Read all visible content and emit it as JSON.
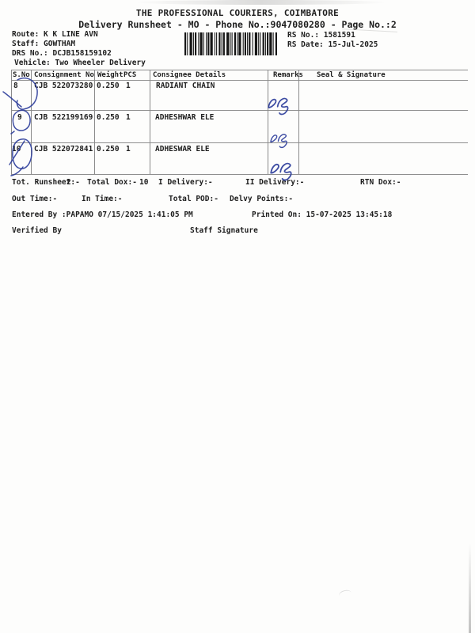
{
  "document": {
    "title": "THE PROFESSIONAL COURIERS, COIMBATORE",
    "subtitle": "Delivery Runsheet - MO - Phone No.:9047080280 - Page No.:2"
  },
  "info": {
    "route": "Route: K K LINE AVN",
    "staff": "Staff: GOWTHAM",
    "drs_no": "DRS No.: DCJB158159102",
    "vehicle": "Vehicle: Two Wheeler Delivery",
    "rs_no": "RS No.: 1581591",
    "rs_date": "RS Date: 15-Jul-2025"
  },
  "icons": {
    "barcode": "barcode"
  },
  "table": {
    "headers": {
      "sno": "S.No",
      "consignment": "Consignment No",
      "weight": "Weight",
      "pcs": "PCS",
      "consignee": "Consignee Details",
      "remarks": "Remarks",
      "seal": "Seal & Signature"
    },
    "rows": [
      {
        "sno": "8",
        "consignment": "CJB 522073280",
        "weight": "0.250",
        "pcs": "1",
        "consignee": "RADIANT CHAIN",
        "remarks": "",
        "seal": ""
      },
      {
        "sno": "9",
        "consignment": "CJB 522199169",
        "weight": "0.250",
        "pcs": "1",
        "consignee": "ADHESHWAR ELE",
        "remarks": "",
        "seal": ""
      },
      {
        "sno": "10",
        "consignment": "CJB 522072841",
        "weight": "0.250",
        "pcs": "1",
        "consignee": "ADHESWAR ELE",
        "remarks": "",
        "seal": ""
      }
    ]
  },
  "summary": {
    "tot_runsheet_label": "Tot. Runsheet:-",
    "tot_runsheet_value": "2",
    "total_dox_label": "Total Dox:-",
    "total_dox_value": "10",
    "i_delivery": "I Delivery:-",
    "ii_delivery": "II Delivery:-",
    "rtn_dox": "RTN Dox:-",
    "out_time": "Out Time:-",
    "in_time": "In Time:-",
    "total_pod": "Total POD:-",
    "delvy_points": "Delvy Points:-",
    "entered_by": "Entered By :PAPAMO 07/15/2025 1:41:05 PM",
    "printed_on": "Printed On: 15-07-2025 13:45:18",
    "verified_by": "Verified By",
    "staff_signature": "Staff Signature"
  },
  "annotations": {
    "ink_color": "#2e3e9b",
    "circled_serial_numbers": [
      "8",
      "9",
      "10"
    ],
    "remarks_initials": [
      "ts",
      "ts",
      "ts"
    ]
  }
}
